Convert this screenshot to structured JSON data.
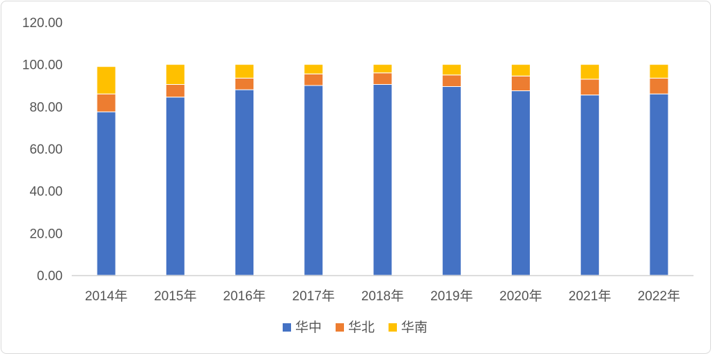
{
  "chart_data": {
    "type": "bar",
    "stacked": true,
    "categories": [
      "2014年",
      "2015年",
      "2016年",
      "2017年",
      "2018年",
      "2019年",
      "2020年",
      "2021年",
      "2022年"
    ],
    "series": [
      {
        "name": "华中",
        "color": "#4472C4",
        "values": [
          77.5,
          84.5,
          88.0,
          90.0,
          90.5,
          89.5,
          87.5,
          85.5,
          86.0
        ]
      },
      {
        "name": "华北",
        "color": "#ED7D31",
        "values": [
          8.5,
          6.0,
          5.5,
          5.5,
          5.5,
          5.5,
          7.0,
          7.5,
          7.5
        ]
      },
      {
        "name": "华南",
        "color": "#FFC000",
        "values": [
          13.0,
          9.5,
          6.5,
          4.5,
          4.0,
          5.0,
          5.5,
          7.0,
          6.5
        ]
      }
    ],
    "ylim": [
      0,
      120
    ],
    "yticks": [
      "0.00",
      "20.00",
      "40.00",
      "60.00",
      "80.00",
      "100.00",
      "120.00"
    ],
    "ytick_values": [
      0,
      20,
      40,
      60,
      80,
      100,
      120
    ],
    "grid": false,
    "legend_position": "bottom",
    "title": "",
    "xlabel": "",
    "ylabel": ""
  }
}
